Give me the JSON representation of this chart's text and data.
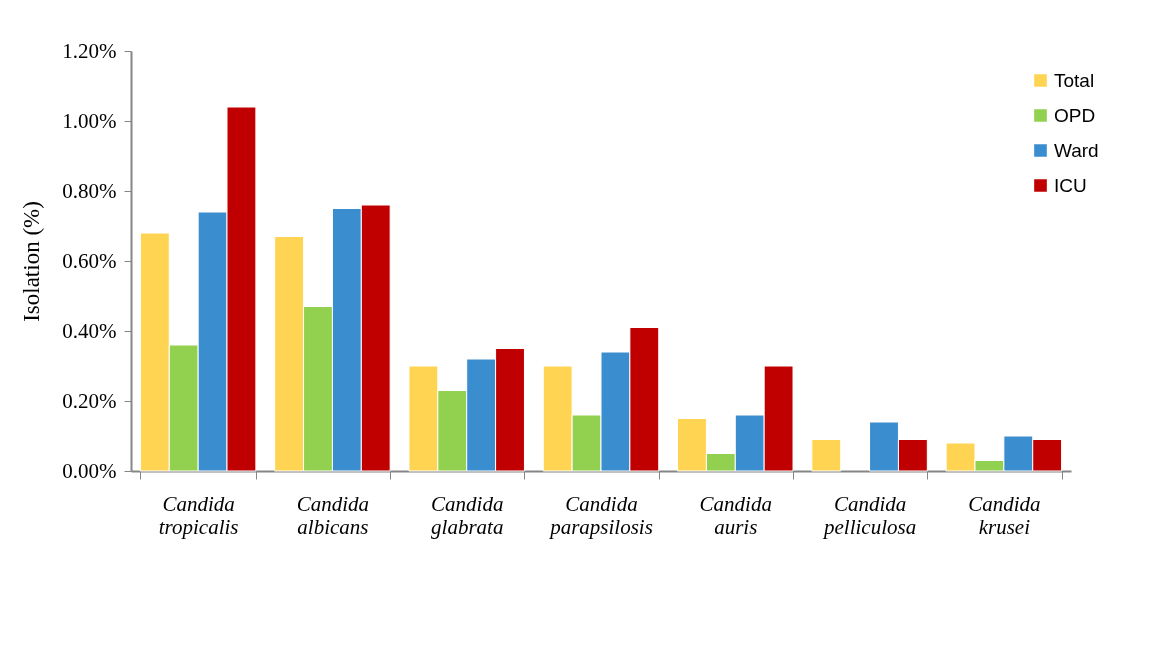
{
  "chart_data": {
    "type": "bar",
    "ylabel": "Isolation (%)",
    "categories": [
      "Candida tropicalis",
      "Candida albicans",
      "Candida glabrata",
      "Candida parapsilosis",
      "Candida auris",
      "Candida pelliculosa",
      "Candida krusei"
    ],
    "series": [
      {
        "name": "Total",
        "color": "#ffd452",
        "values": [
          0.68,
          0.67,
          0.3,
          0.3,
          0.15,
          0.09,
          0.08
        ]
      },
      {
        "name": "OPD",
        "color": "#92d050",
        "values": [
          0.36,
          0.47,
          0.23,
          0.16,
          0.05,
          null,
          0.03
        ]
      },
      {
        "name": "Ward",
        "color": "#3a8dce",
        "values": [
          0.74,
          0.75,
          0.32,
          0.34,
          0.16,
          0.14,
          0.1
        ]
      },
      {
        "name": "ICU",
        "color": "#c00000",
        "values": [
          1.04,
          0.76,
          0.35,
          0.41,
          0.3,
          0.09,
          0.09
        ]
      }
    ],
    "ylim": [
      0,
      1.2
    ],
    "yticks": [
      {
        "value": 0,
        "label": "0.00%"
      },
      {
        "value": 0.2,
        "label": "0.20%"
      },
      {
        "value": 0.4,
        "label": "0.40%"
      },
      {
        "value": 0.6,
        "label": "0.60%"
      },
      {
        "value": 0.8,
        "label": "0.80%"
      },
      {
        "value": 1.0,
        "label": "1.00%"
      },
      {
        "value": 1.2,
        "label": "1.20%"
      }
    ],
    "grid": false,
    "legend": "top right"
  }
}
